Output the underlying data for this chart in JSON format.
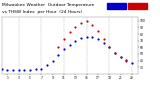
{
  "title": "Milwaukee Weather  Outdoor Temperature",
  "title2": "vs THSW Index  per Hour  (24 Hours)",
  "title_fontsize": 3.2,
  "background_color": "#ffffff",
  "plot_bg_color": "#ffffff",
  "grid_color": "#aaaaaa",
  "xlim": [
    0,
    24
  ],
  "ylim": [
    20,
    105
  ],
  "ytick_labels": [
    "30",
    "40",
    "50",
    "60",
    "70",
    "80",
    "90",
    "100"
  ],
  "ytick_values": [
    30,
    40,
    50,
    60,
    70,
    80,
    90,
    100
  ],
  "xtick_values": [
    1,
    3,
    5,
    7,
    9,
    11,
    13,
    15,
    17,
    19,
    21,
    23
  ],
  "xtick_labels": [
    "1",
    "3",
    "5",
    "7",
    "9",
    "11",
    "13",
    "15",
    "17",
    "19",
    "21",
    "23"
  ],
  "legend_colors": [
    "#0000cc",
    "#cc0000"
  ],
  "temp_hours": [
    0,
    1,
    2,
    3,
    4,
    5,
    6,
    7,
    8,
    9,
    10,
    11,
    12,
    13,
    14,
    15,
    16,
    17,
    18,
    19,
    20,
    21,
    22,
    23
  ],
  "temp_values": [
    27,
    26,
    26,
    26,
    26,
    26,
    27,
    28,
    33,
    40,
    49,
    57,
    64,
    70,
    74,
    76,
    75,
    72,
    67,
    60,
    52,
    46,
    41,
    37
  ],
  "thsw_hours": [
    10,
    11,
    12,
    13,
    14,
    15,
    16,
    17,
    18,
    19,
    20,
    21,
    22
  ],
  "thsw_values": [
    60,
    72,
    83,
    91,
    97,
    99,
    94,
    85,
    73,
    61,
    52,
    45,
    40
  ],
  "vgrid_hours": [
    3,
    7,
    11,
    15,
    19,
    23
  ],
  "dot_size": 2.5
}
